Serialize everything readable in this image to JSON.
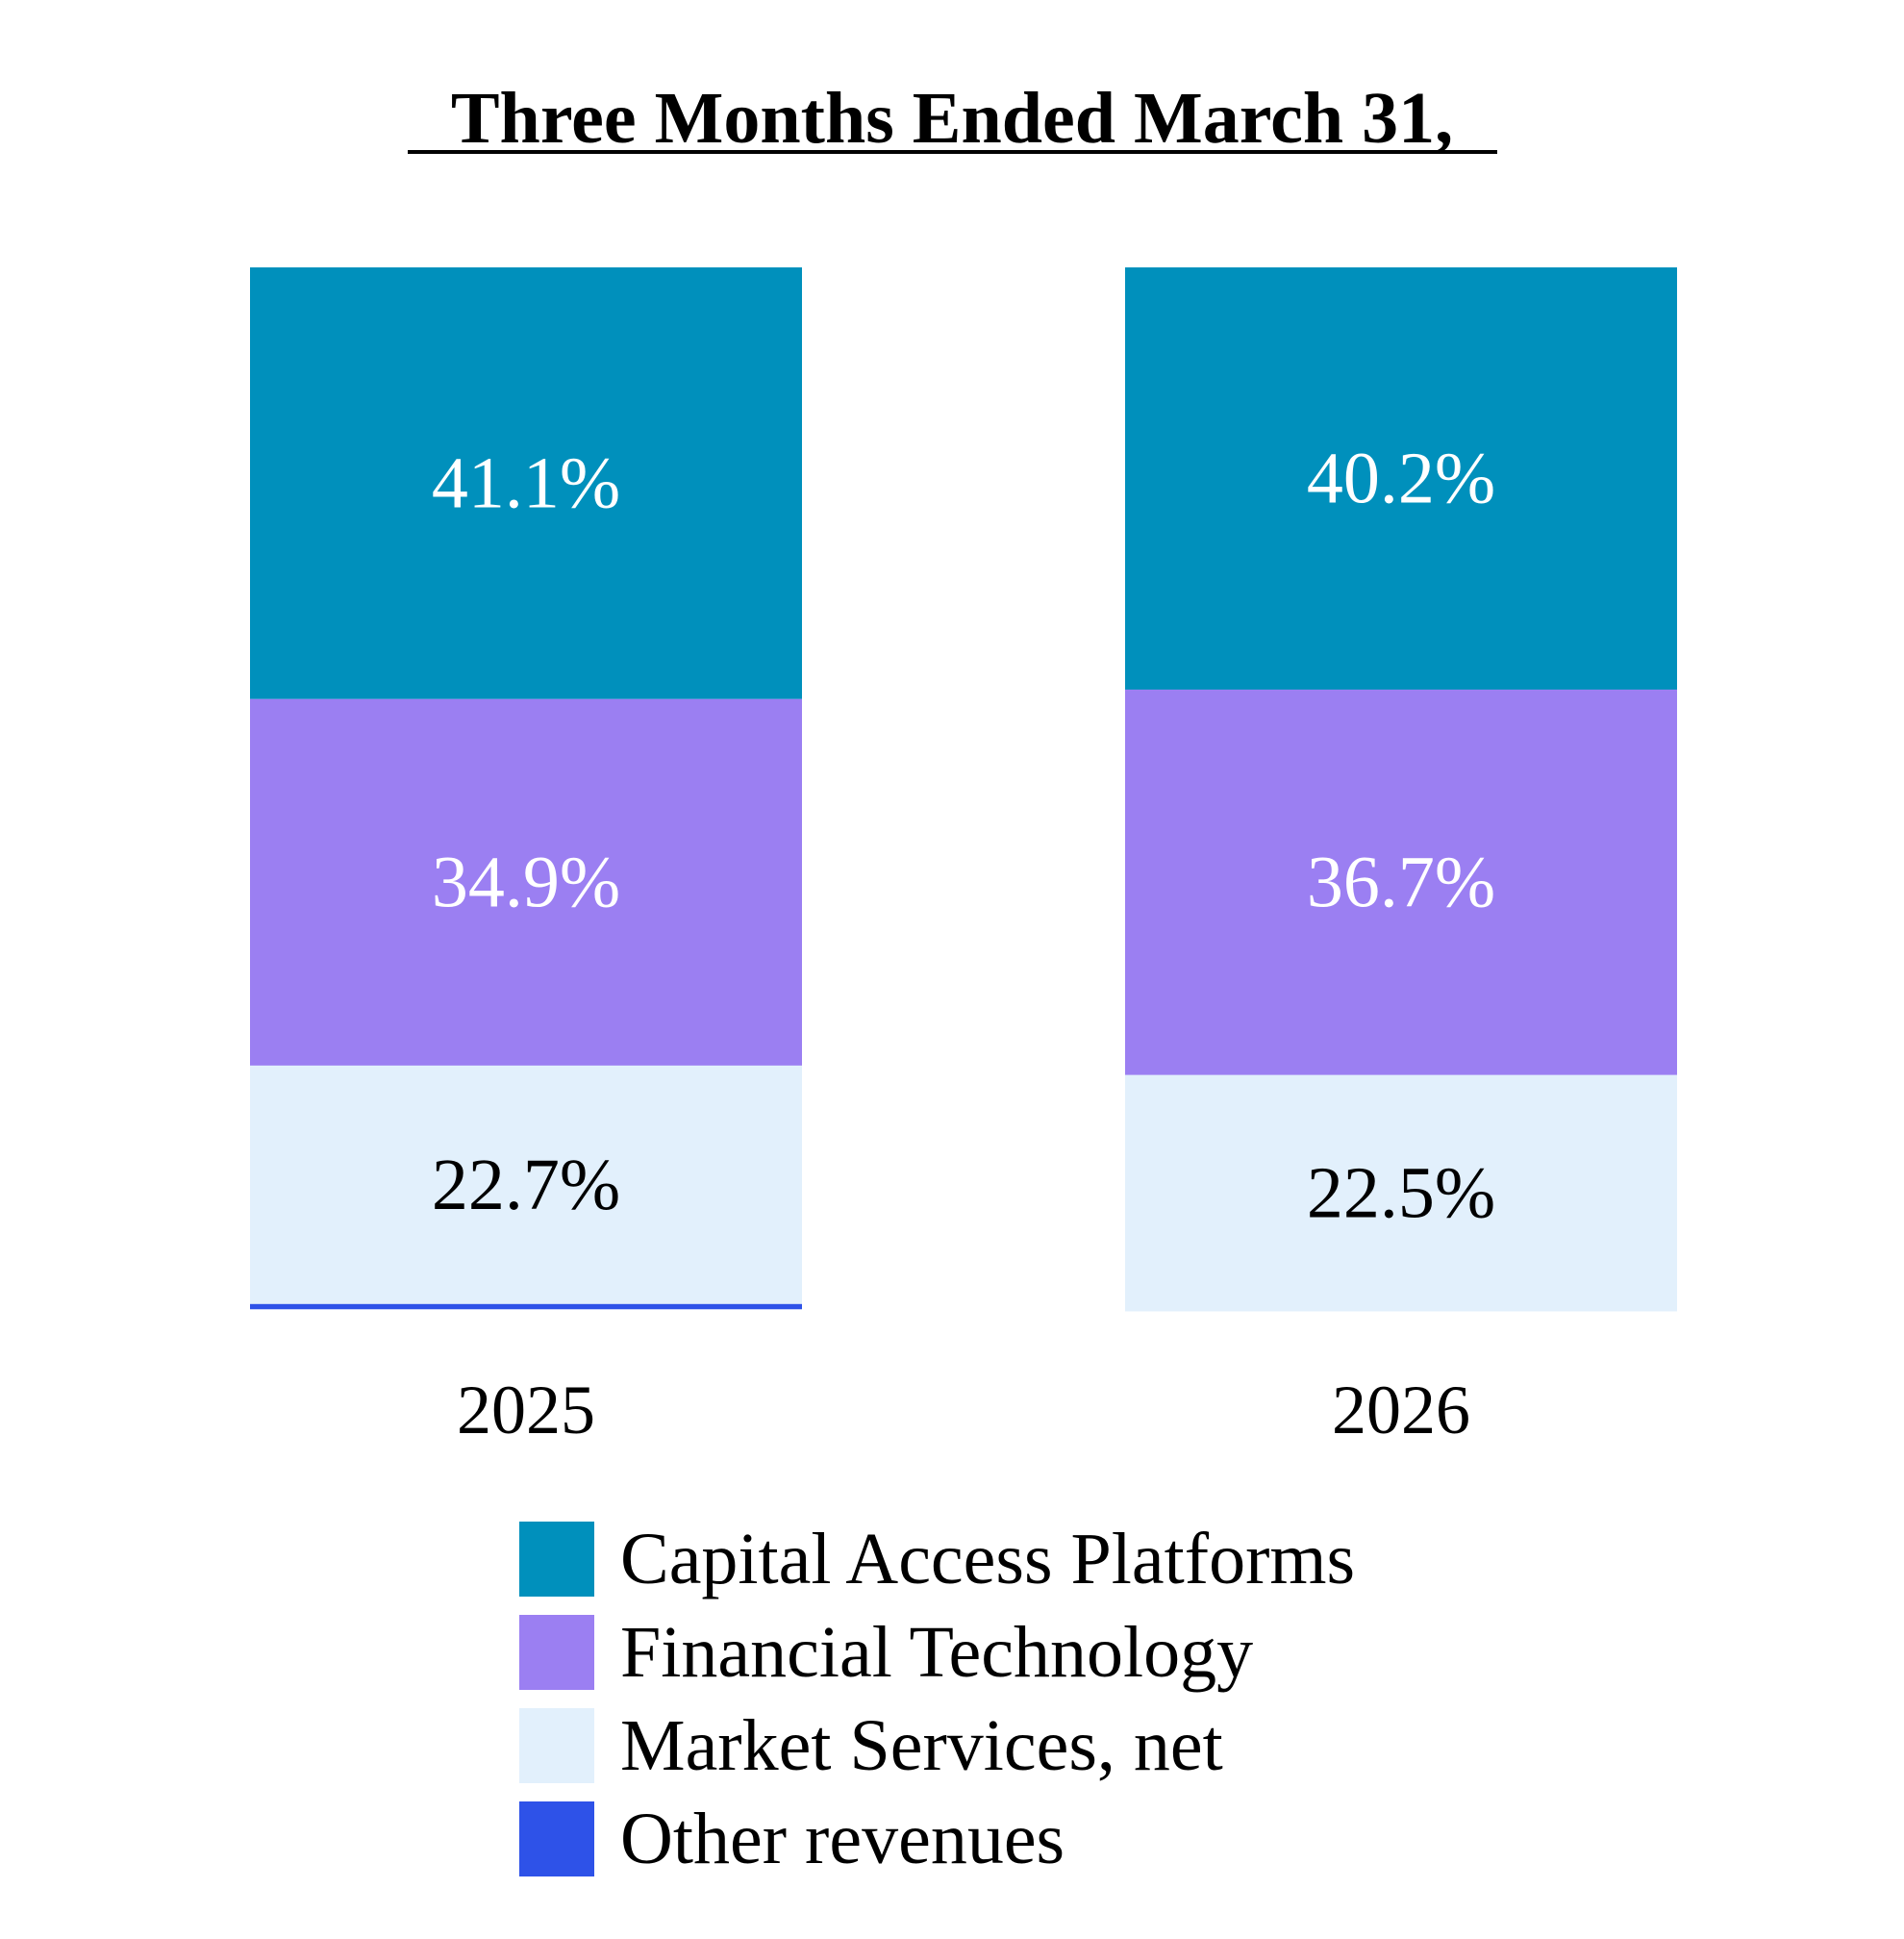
{
  "chart_data": {
    "type": "bar",
    "stacked": true,
    "title": "Three Months Ended March 31,",
    "categories": [
      "2025",
      "2026"
    ],
    "series": [
      {
        "name": "Capital Access Platforms",
        "values": [
          41.1,
          40.2
        ],
        "labels": [
          "41.1%",
          "40.2%"
        ],
        "color": "#0090BC",
        "label_color": "#ffffff"
      },
      {
        "name": "Financial Technology",
        "values": [
          34.9,
          36.7
        ],
        "labels": [
          "34.9%",
          "36.7%"
        ],
        "color": "#9B7FF2",
        "label_color": "#ffffff"
      },
      {
        "name": "Market Services, net",
        "values": [
          22.7,
          22.5
        ],
        "labels": [
          "22.7%",
          "22.5%"
        ],
        "color": "#E2F0FC",
        "label_color": "#000000"
      },
      {
        "name": "Other revenues",
        "values": [
          0.5,
          0.0
        ],
        "labels": [
          "",
          ""
        ],
        "color": "#2E52E8",
        "label_color": "#ffffff"
      }
    ],
    "ylim": [
      0,
      100
    ],
    "unit": "%",
    "grid": false,
    "legend_position": "bottom"
  }
}
